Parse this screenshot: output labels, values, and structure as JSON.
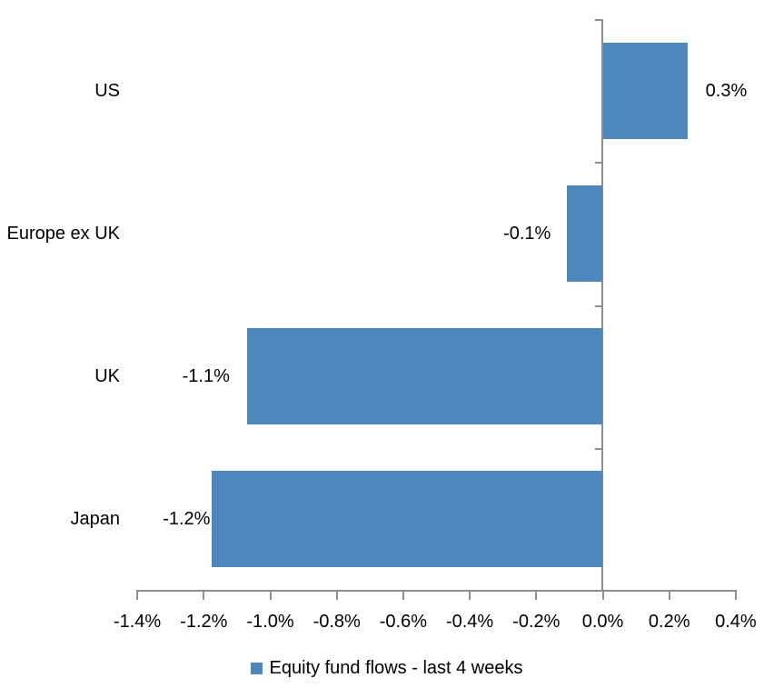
{
  "chart_data": {
    "type": "bar",
    "orientation": "horizontal",
    "title": "",
    "categories": [
      "US",
      "Europe ex UK",
      "UK",
      "Japan"
    ],
    "values": [
      0.3,
      -0.1,
      -1.1,
      -1.2
    ],
    "value_labels": [
      "0.3%",
      "-0.1%",
      "-1.1%",
      "-1.2%"
    ],
    "plot_values": [
      0.2545,
      -0.107,
      -1.07,
      -1.175
    ],
    "series": [
      {
        "name": "Equity fund flows - last 4 weeks",
        "values": [
          0.3,
          -0.1,
          -1.1,
          -1.2
        ]
      }
    ],
    "series_name": "Equity fund flows - last 4 weeks",
    "xlabel": "",
    "ylabel": "",
    "xlim": [
      -1.4,
      0.4
    ],
    "x_ticks": [
      -1.4,
      -1.2,
      -1.0,
      -0.8,
      -0.6,
      -0.4,
      -0.2,
      0.0,
      0.2,
      0.4
    ],
    "x_tick_labels": [
      "-1.4%",
      "-1.2%",
      "-1.0%",
      "-0.8%",
      "-0.6%",
      "-0.4%",
      "-0.2%",
      "0.0%",
      "0.2%",
      "0.4%"
    ],
    "grid": false,
    "legend_position": "bottom",
    "bar_color": "#4E86BE",
    "axis_color": "#8E8E8E",
    "text_color": "#000000"
  }
}
